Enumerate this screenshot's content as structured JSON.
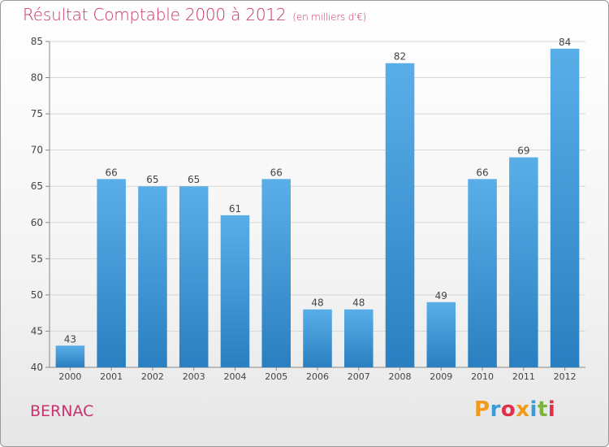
{
  "title": "Résultat Comptable 2000 à 2012",
  "subtitle": "(en milliers d'€)",
  "commune": "BERNAC",
  "logo_letters": [
    "P",
    "r",
    "o",
    "x",
    "i",
    "t",
    "i"
  ],
  "logo_colors": [
    "#f29a1a",
    "#3c9bd6",
    "#e0304a",
    "#f29a1a",
    "#3c9bd6",
    "#7cb33a",
    "#e0304a"
  ],
  "colors": {
    "accent": "#c8326c",
    "bar_top": "#5aaee8",
    "bar_bottom": "#2a7fc0"
  },
  "chart_data": {
    "type": "bar",
    "title": "Résultat Comptable 2000 à 2012",
    "xlabel": "",
    "ylabel": "",
    "categories": [
      "2000",
      "2001",
      "2002",
      "2003",
      "2004",
      "2005",
      "2006",
      "2007",
      "2008",
      "2009",
      "2010",
      "2011",
      "2012"
    ],
    "values": [
      43,
      66,
      65,
      65,
      61,
      66,
      48,
      48,
      82,
      49,
      66,
      69,
      84
    ],
    "ylim": [
      40,
      85
    ],
    "yticks": [
      40,
      45,
      50,
      55,
      60,
      65,
      70,
      75,
      80,
      85
    ],
    "grid": true,
    "legend": "none"
  }
}
